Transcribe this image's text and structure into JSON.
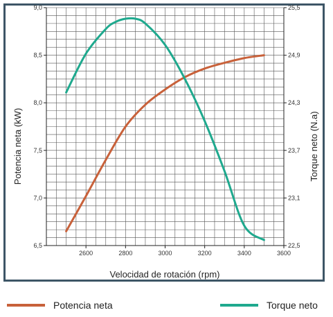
{
  "chart_data": {
    "type": "line",
    "xlabel": "Velocidad de rotación (rpm)",
    "ylabel_left": "Potencia neta (kW)",
    "ylabel_right": "Torque neto (N.a)",
    "x_ticks": [
      "2600",
      "2800",
      "3000",
      "3200",
      "3400",
      "3600"
    ],
    "y_left_ticks": [
      "6,5",
      "7,0",
      "7,5",
      "8,0",
      "8,5",
      "9,0"
    ],
    "y_right_ticks": [
      "22,5",
      "23,1",
      "23,7",
      "24,3",
      "24,9",
      "25,5"
    ],
    "xlim": [
      2400,
      3600
    ],
    "ylim_left": [
      6.5,
      9.0
    ],
    "ylim_right": [
      22.5,
      25.5
    ],
    "grid": true,
    "legend_position": "bottom",
    "series": [
      {
        "name": "Potencia neta",
        "axis": "left",
        "color": "#c8613a",
        "x": [
          2500,
          2600,
          2700,
          2800,
          2900,
          3000,
          3100,
          3200,
          3300,
          3400,
          3500
        ],
        "y": [
          6.65,
          7.02,
          7.4,
          7.75,
          7.98,
          8.14,
          8.27,
          8.36,
          8.42,
          8.47,
          8.5
        ]
      },
      {
        "name": "Torque neto",
        "axis": "right",
        "color": "#1fa98e",
        "x": [
          2500,
          2600,
          2700,
          2750,
          2800,
          2850,
          2900,
          3000,
          3100,
          3200,
          3300,
          3400,
          3500
        ],
        "y": [
          24.43,
          24.92,
          25.23,
          25.32,
          25.36,
          25.36,
          25.3,
          25.03,
          24.6,
          24.07,
          23.44,
          22.75,
          22.57
        ]
      }
    ]
  }
}
